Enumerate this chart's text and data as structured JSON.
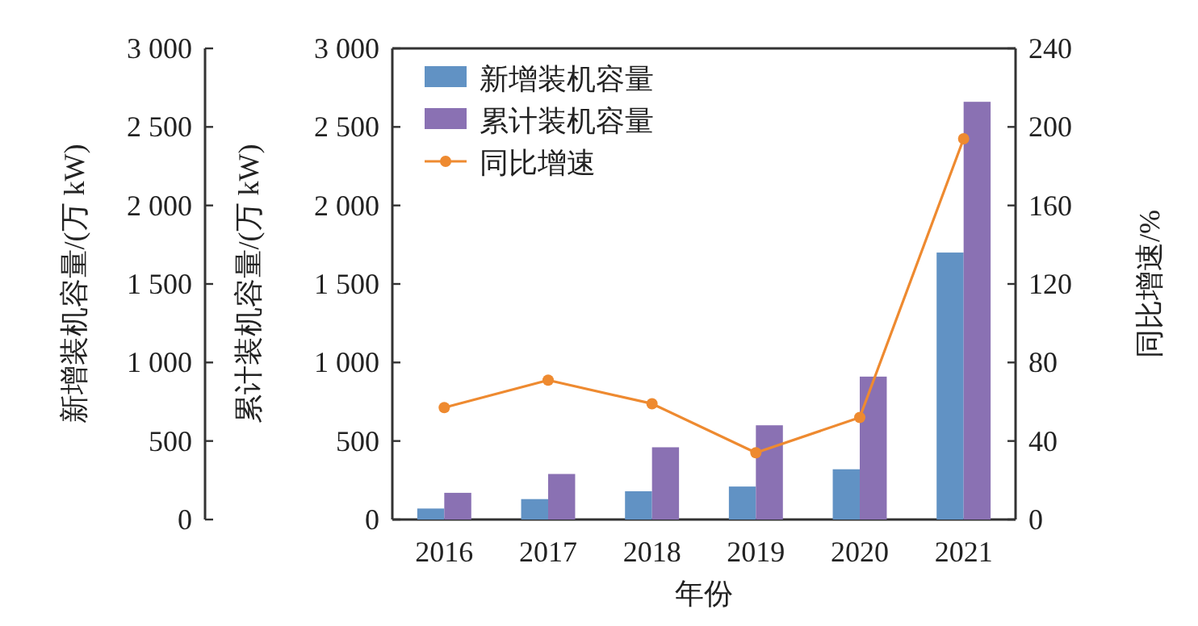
{
  "chart_data": {
    "type": "bar",
    "xlabel": "年份",
    "ylabel": "累计装机容量/(万 kW)",
    "y3label": "新增装机容量/(万 kW)",
    "y2label": "同比增速/%",
    "categories": [
      "2016",
      "2017",
      "2018",
      "2019",
      "2020",
      "2021"
    ],
    "series": [
      {
        "name": "新增装机容量",
        "axis": "y3",
        "color": "#6192c4",
        "values": [
          70,
          130,
          180,
          210,
          320,
          1700
        ]
      },
      {
        "name": "累计装机容量",
        "color": "#8a71b3",
        "values": [
          170,
          290,
          460,
          600,
          910,
          2660
        ]
      },
      {
        "name": "同比增速",
        "type": "line",
        "axis": "y2",
        "color": "#ee8a30",
        "marker": "circle",
        "values": [
          57,
          71,
          59,
          34,
          52,
          194
        ]
      }
    ],
    "ylim": [
      0,
      3000
    ],
    "yticks": [
      0,
      500,
      {
        "value": 1000,
        "label": "1 000"
      },
      {
        "value": 1500,
        "label": "1 500"
      },
      {
        "value": 2000,
        "label": "2 000"
      },
      {
        "value": 2500,
        "label": "2 500"
      },
      {
        "value": 3000,
        "label": "3 000"
      }
    ],
    "y3lim": [
      0,
      3000
    ],
    "y3ticks": [
      0,
      500,
      {
        "value": 1000,
        "label": "1 000"
      },
      {
        "value": 1500,
        "label": "1 500"
      },
      {
        "value": 2000,
        "label": "2 000"
      },
      {
        "value": 2500,
        "label": "2 500"
      },
      {
        "value": 3000,
        "label": "3 000"
      }
    ],
    "y2lim": [
      0,
      240
    ],
    "y2ticks": [
      0,
      40,
      80,
      120,
      160,
      200,
      240
    ],
    "legend": "top left",
    "grid": false
  }
}
